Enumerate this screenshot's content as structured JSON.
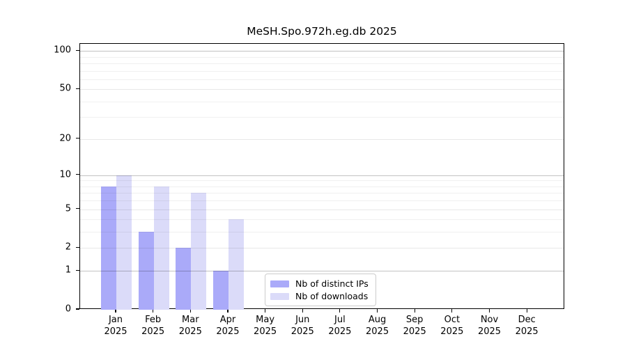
{
  "title": "MeSH.Spo.972h.eg.db 2025",
  "chart_data": {
    "type": "bar",
    "title": "MeSH.Spo.972h.eg.db 2025",
    "categories": [
      "Jan",
      "Feb",
      "Mar",
      "Apr",
      "May",
      "Jun",
      "Jul",
      "Aug",
      "Sep",
      "Oct",
      "Nov",
      "Dec"
    ],
    "x_tick_year": "2025",
    "series": [
      {
        "name": "Nb of distinct IPs",
        "color": "#aaaaf9",
        "values": [
          8,
          3,
          2,
          1,
          0,
          0,
          0,
          0,
          0,
          0,
          0,
          0
        ]
      },
      {
        "name": "Nb of downloads",
        "color": "#dbdbf9",
        "values": [
          10,
          8,
          7,
          4,
          0,
          0,
          0,
          0,
          0,
          0,
          0,
          0
        ]
      }
    ],
    "xlabel": "",
    "ylabel": "",
    "yscale": "log1p",
    "ylim": [
      0,
      113.5
    ],
    "y_major_ticks": [
      0,
      1,
      2,
      5,
      10,
      20,
      50,
      100
    ],
    "y_minor_ticks": [
      3,
      4,
      6,
      7,
      8,
      9,
      30,
      40,
      60,
      70,
      80,
      90
    ],
    "y_decade_lines": [
      1,
      10,
      100
    ],
    "grid": true,
    "legend_position": "bottom-center"
  }
}
